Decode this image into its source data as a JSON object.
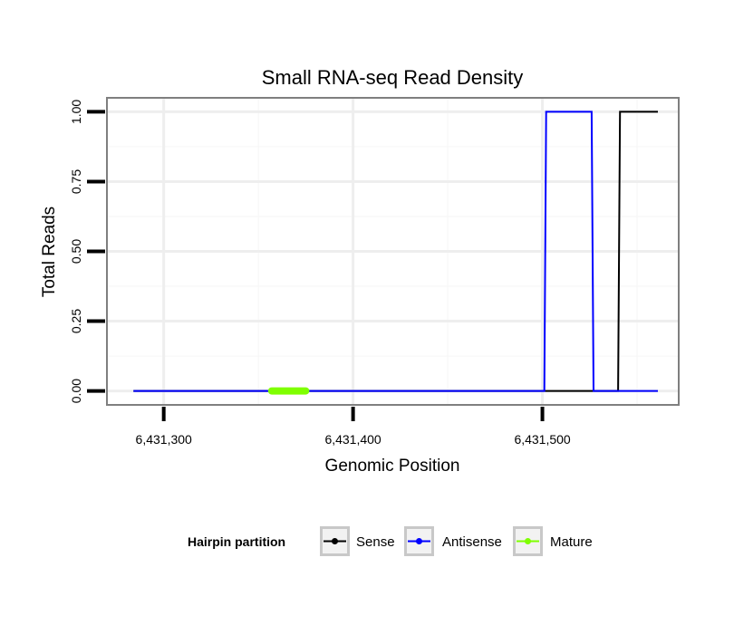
{
  "chart_data": {
    "type": "line",
    "title": "Small RNA-seq Read Density",
    "xlabel": "Genomic Position",
    "ylabel": "Total Reads",
    "xlim": [
      6431270,
      6431572
    ],
    "ylim": [
      -0.05,
      1.05
    ],
    "x_ticks": [
      6431300,
      6431400,
      6431500
    ],
    "x_tick_labels": [
      "6,431,300",
      "6,431,400",
      "6,431,500"
    ],
    "y_ticks": [
      0,
      0.25,
      0.5,
      0.75,
      1
    ],
    "y_tick_labels": [
      "0.00",
      "0.25",
      "0.50",
      "0.75",
      "1.00"
    ],
    "grid": true,
    "legend_title": "Hairpin partition",
    "legend_position": "bottom",
    "series": [
      {
        "name": "Sense",
        "color": "#000000",
        "x": [
          6431284,
          6431301,
          6431369,
          6431401,
          6431530,
          6431540,
          6431541,
          6431561
        ],
        "y": [
          0,
          0,
          0,
          0,
          0,
          0,
          1,
          1
        ]
      },
      {
        "name": "Antisense",
        "color": "#0000ff",
        "x": [
          6431284,
          6431501,
          6431502,
          6431526,
          6431527,
          6431561
        ],
        "y": [
          0,
          0,
          1,
          1,
          0,
          0
        ]
      },
      {
        "name": "Mature",
        "color": "#7fff00",
        "x": [
          6431357,
          6431375
        ],
        "y": [
          0,
          0
        ]
      }
    ]
  }
}
